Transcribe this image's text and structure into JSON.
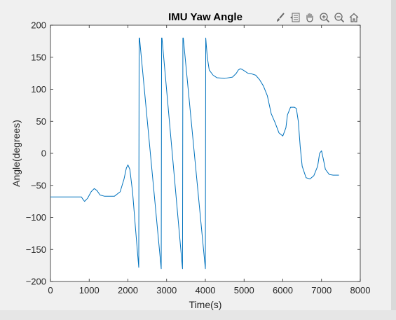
{
  "colors": {
    "background": "#f0f0f0",
    "axes_background": "#ffffff",
    "series": "#0072bd",
    "axis": "#262626"
  },
  "toolbar": {
    "buttons": [
      {
        "name": "brush-icon"
      },
      {
        "name": "datatip-icon"
      },
      {
        "name": "pan-hand-icon"
      },
      {
        "name": "zoom-in-icon"
      },
      {
        "name": "zoom-out-icon"
      },
      {
        "name": "home-icon"
      }
    ]
  },
  "chart_data": {
    "type": "line",
    "title": "IMU Yaw Angle",
    "xlabel": "Time(s)",
    "ylabel": "Angle(degrees)",
    "xlim": [
      0,
      8000
    ],
    "ylim": [
      -200,
      200
    ],
    "xticks": [
      0,
      1000,
      2000,
      3000,
      4000,
      5000,
      6000,
      7000,
      8000
    ],
    "yticks": [
      -200,
      -150,
      -100,
      -50,
      0,
      50,
      100,
      150,
      200
    ],
    "grid": false,
    "series": [
      {
        "x": [
          0,
          800,
          830,
          880,
          960,
          1050,
          1130,
          1200,
          1280,
          1400,
          1650,
          1800,
          1900,
          1960,
          2000,
          2050,
          2120,
          2200,
          2280,
          2290,
          2300,
          2860,
          2870,
          2880,
          3410,
          3420,
          3430,
          4000,
          4010,
          4050,
          4100,
          4200,
          4300,
          4500,
          4700,
          4800,
          4850,
          4900,
          4950,
          5000,
          5100,
          5200,
          5300,
          5400,
          5500,
          5600,
          5700,
          5800,
          5900,
          6000,
          6080,
          6120,
          6200,
          6300,
          6350,
          6400,
          6450,
          6500,
          6600,
          6700,
          6800,
          6900,
          6950,
          7000,
          7050,
          7100,
          7200,
          7300,
          7450
        ],
        "y": [
          -68,
          -68,
          -71,
          -75,
          -70,
          -60,
          -55,
          -58,
          -65,
          -67,
          -67,
          -60,
          -40,
          -23,
          -18,
          -25,
          -60,
          -120,
          -178,
          180,
          180,
          -180,
          180,
          180,
          -180,
          180,
          180,
          -180,
          180,
          150,
          130,
          122,
          118,
          117,
          119,
          125,
          130,
          132,
          131,
          129,
          125,
          124,
          122,
          115,
          105,
          90,
          62,
          48,
          32,
          27,
          40,
          60,
          72,
          72,
          70,
          50,
          10,
          -20,
          -38,
          -40,
          -35,
          -20,
          0,
          4,
          -10,
          -25,
          -33,
          -34,
          -34
        ],
        "breaks": [
          19,
          22,
          25
        ]
      }
    ]
  }
}
